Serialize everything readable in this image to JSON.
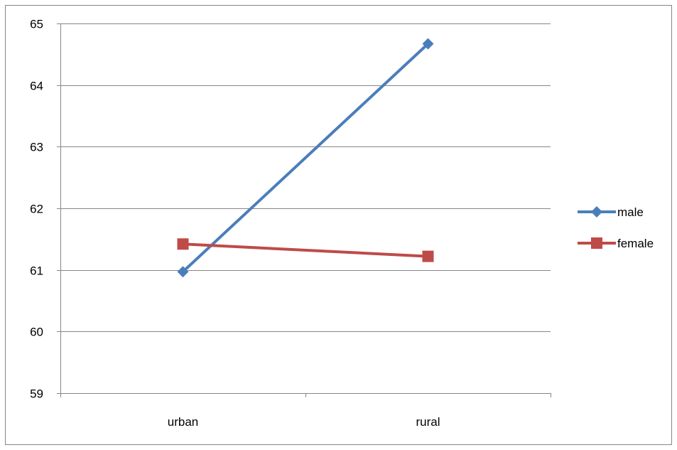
{
  "chart_data": {
    "type": "line",
    "categories": [
      "urban",
      "rural"
    ],
    "series": [
      {
        "name": "male",
        "values": [
          60.97,
          64.67
        ],
        "color": "#4a7ebb",
        "marker": "diamond"
      },
      {
        "name": "female",
        "values": [
          61.42,
          61.22
        ],
        "color": "#be4b48",
        "marker": "square"
      }
    ],
    "title": "",
    "xlabel": "",
    "ylabel": "",
    "ylim": [
      59,
      65
    ],
    "yticks": [
      59,
      60,
      61,
      62,
      63,
      64,
      65
    ],
    "grid": true,
    "legend_position": "right"
  }
}
